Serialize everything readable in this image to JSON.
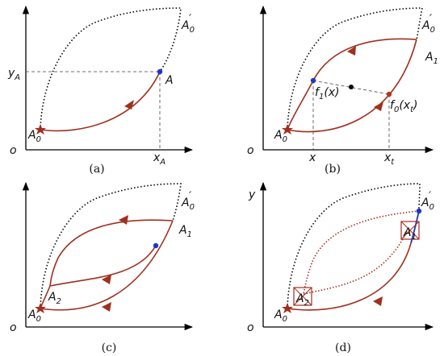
{
  "colors": {
    "curve": "#a0301e",
    "point_blue": "#1f35c9",
    "point_red": "#b8331f",
    "star": "#a0301e",
    "axes": "#000000"
  },
  "panels": {
    "a": {
      "caption": "(a)",
      "origin": "o",
      "labels": {
        "A0": "A",
        "A0_sub": "0",
        "A0p": "A",
        "A0p_sub": "0",
        "A0p_prime": "′",
        "A": "A",
        "yA": "y",
        "yA_sub": "A",
        "xA": "x",
        "xA_sub": "A"
      }
    },
    "b": {
      "caption": "(b)",
      "origin": "o",
      "labels": {
        "A0": "A",
        "A0_sub": "0",
        "A0p": "A",
        "A0p_sub": "0",
        "A0p_prime": "′",
        "A1": "A",
        "A1_sub": "1",
        "f1": "f",
        "f1_sub": "1",
        "f1_arg": "(x)",
        "f0": "f",
        "f0_sub": "0",
        "f0_arg": "(x",
        "f0_argsub": "t",
        "f0_close": ")",
        "x": "x",
        "xt": "x",
        "xt_sub": "t"
      }
    },
    "c": {
      "caption": "(c)",
      "origin": "o",
      "labels": {
        "A0": "A",
        "A0_sub": "0",
        "A0p": "A",
        "A0p_sub": "0",
        "A0p_prime": "′",
        "A1": "A",
        "A1_sub": "1",
        "A2": "A",
        "A2_sub": "2"
      }
    },
    "d": {
      "caption": "(d)",
      "origin": "o",
      "yaxis": "y",
      "labels": {
        "A0": "A",
        "A0_sub": "0",
        "A0p": "A",
        "A0p_sub": "0",
        "A0p_prime": "′",
        "A1": "A",
        "A1_sub": "1",
        "A2": "A",
        "A2_sub": "2"
      }
    }
  }
}
